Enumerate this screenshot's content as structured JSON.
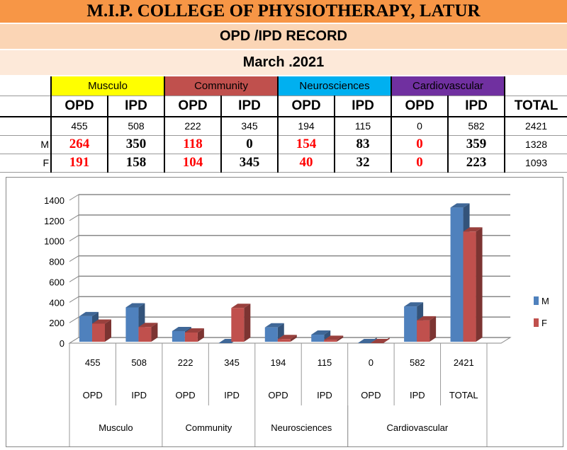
{
  "header": {
    "title": "M.I.P. COLLEGE OF PHYSIOTHERAPY, LATUR",
    "subtitle": "OPD /IPD RECORD",
    "period": "March .2021"
  },
  "table": {
    "categories": [
      {
        "label": "Musculo",
        "color": "#FFFF00"
      },
      {
        "label": "Community",
        "color": "#C0504D"
      },
      {
        "label": "Neurosciences",
        "color": "#00B0F0"
      },
      {
        "label": "Cardiovascular",
        "color": "#7030A0"
      }
    ],
    "columns": [
      "OPD",
      "IPD",
      "OPD",
      "IPD",
      "OPD",
      "IPD",
      "OPD",
      "IPD",
      "TOTAL"
    ],
    "totals": [
      "455",
      "508",
      "222",
      "345",
      "194",
      "115",
      "0",
      "582",
      "2421"
    ],
    "rows": [
      {
        "label": "M",
        "values": [
          "264",
          "350",
          "118",
          "0",
          "154",
          "83",
          "0",
          "359",
          "1328"
        ]
      },
      {
        "label": "F",
        "values": [
          "191",
          "158",
          "104",
          "345",
          "40",
          "32",
          "0",
          "223",
          "1093"
        ]
      }
    ]
  },
  "chart_data": {
    "type": "bar",
    "categories": [
      "455",
      "508",
      "222",
      "345",
      "194",
      "115",
      "0",
      "582",
      "2421"
    ],
    "subcategories": [
      "OPD",
      "IPD",
      "OPD",
      "IPD",
      "OPD",
      "IPD",
      "OPD",
      "IPD",
      "TOTAL"
    ],
    "groups": [
      "Musculo",
      "Community",
      "Neurosciences",
      "Cardiovascular"
    ],
    "series": [
      {
        "name": "M",
        "color": "#4F81BD",
        "values": [
          264,
          350,
          118,
          0,
          154,
          83,
          0,
          359,
          1328
        ]
      },
      {
        "name": "F",
        "color": "#C0504D",
        "values": [
          191,
          158,
          104,
          345,
          40,
          32,
          0,
          223,
          1093
        ]
      }
    ],
    "yticks": [
      "0",
      "200",
      "400",
      "600",
      "800",
      "1000",
      "1200",
      "1400"
    ],
    "ylim": [
      0,
      1400
    ],
    "grid": true,
    "legend": "right"
  }
}
